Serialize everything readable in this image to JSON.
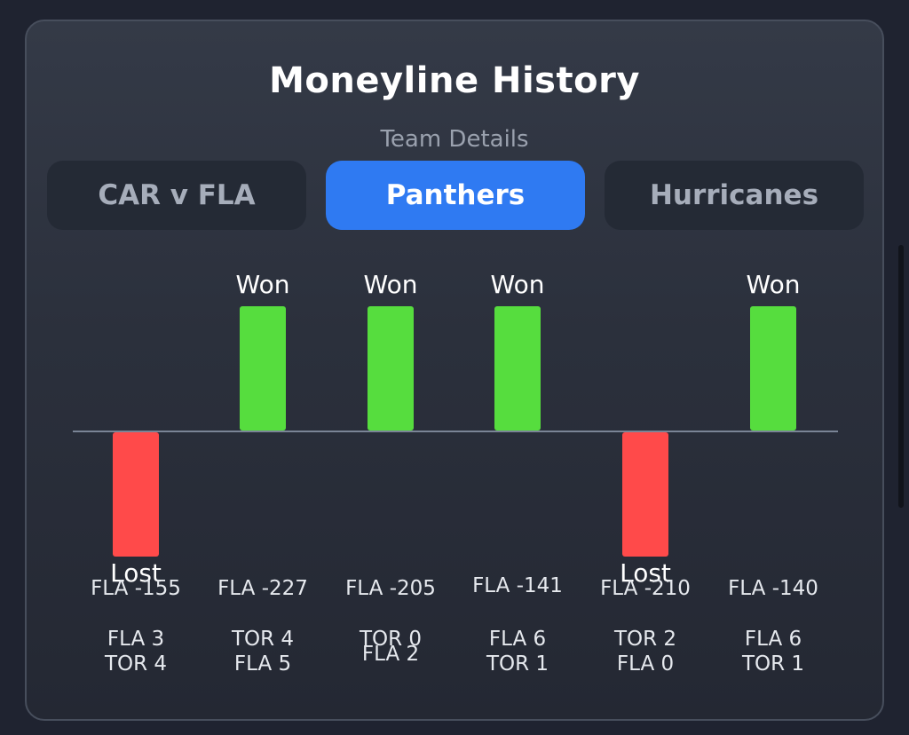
{
  "header": {
    "title": "Moneyline History",
    "subtitle": "Team Details"
  },
  "tabs": [
    {
      "label": "CAR v FLA",
      "active": false
    },
    {
      "label": "Panthers",
      "active": true
    },
    {
      "label": "Hurricanes",
      "active": false
    }
  ],
  "colors": {
    "won": "#56dd3e",
    "lost": "#ff4a4a",
    "accent": "#2f7af2"
  },
  "chart_data": {
    "type": "bar",
    "games": [
      {
        "result": "Lost",
        "line": "FLA -155",
        "score1": "FLA 3",
        "score2": "TOR 4"
      },
      {
        "result": "Won",
        "line": "FLA -227",
        "score1": "TOR 4",
        "score2": "FLA 5"
      },
      {
        "result": "Won",
        "line": "FLA -205",
        "score1": "TOR 0",
        "score2": "FLA 2"
      },
      {
        "result": "Won",
        "line": "FLA -141",
        "score1": "FLA 6",
        "score2": "TOR 1"
      },
      {
        "result": "Lost",
        "line": "FLA -210",
        "score1": "TOR 2",
        "score2": "FLA 0"
      },
      {
        "result": "Won",
        "line": "FLA -140",
        "score1": "FLA 6",
        "score2": "TOR 1"
      }
    ]
  }
}
